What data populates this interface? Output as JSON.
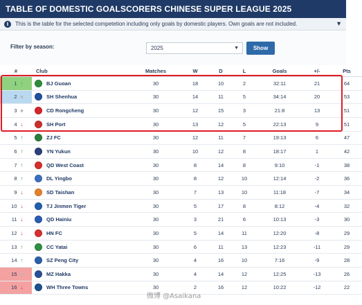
{
  "header": {
    "title": "TABLE OF DOMESTIC GOALSCORERS CHINESE SUPER LEAGUE 2025",
    "info_icon": "info-icon",
    "info_text": "This is the table for the selected competetion including only goals by domestic players. Own goals are not included.",
    "info_toggle": "▼"
  },
  "filter": {
    "label": "Filter by season:",
    "season_value": "2025",
    "show_label": "Show"
  },
  "columns": {
    "pos": "#",
    "club": "Club",
    "matches": "Matches",
    "w": "W",
    "d": "D",
    "l": "L",
    "goals": "Goals",
    "diff": "+/-",
    "pts": "Pts"
  },
  "colors": {
    "header_bg": "#1f3a66",
    "acl_zone": "#8fd17f",
    "acl2_zone": "#b8d9f0",
    "relegation_zone": "#f3a1a1",
    "highlight_border": "#e01b24"
  },
  "rows": [
    {
      "pos": "1",
      "trend": "up",
      "club": "BJ Guoan",
      "badge": "#2e8b3a",
      "matches": "30",
      "w": "18",
      "d": "10",
      "l": "2",
      "goals": "32:11",
      "diff": "21",
      "pts": "64",
      "zone": "acl"
    },
    {
      "pos": "2",
      "trend": "flat",
      "club": "SH Shenhua",
      "badge": "#1f4fa0",
      "matches": "30",
      "w": "14",
      "d": "11",
      "l": "5",
      "goals": "34:14",
      "diff": "20",
      "pts": "53",
      "zone": "acl2"
    },
    {
      "pos": "3",
      "trend": "flat",
      "club": "CD Rongcheng",
      "badge": "#d4262b",
      "matches": "30",
      "w": "12",
      "d": "15",
      "l": "3",
      "goals": "21:8",
      "diff": "13",
      "pts": "51",
      "zone": ""
    },
    {
      "pos": "4",
      "trend": "down",
      "club": "SH Port",
      "badge": "#c9302c",
      "matches": "30",
      "w": "13",
      "d": "12",
      "l": "5",
      "goals": "22:13",
      "diff": "9",
      "pts": "51",
      "zone": ""
    },
    {
      "pos": "5",
      "trend": "up",
      "club": "ZJ FC",
      "badge": "#2d7d3c",
      "matches": "30",
      "w": "12",
      "d": "11",
      "l": "7",
      "goals": "19:13",
      "diff": "6",
      "pts": "47",
      "zone": ""
    },
    {
      "pos": "6",
      "trend": "up",
      "club": "YN Yukun",
      "badge": "#2b3f7a",
      "matches": "30",
      "w": "10",
      "d": "12",
      "l": "8",
      "goals": "18:17",
      "diff": "1",
      "pts": "42",
      "zone": ""
    },
    {
      "pos": "7",
      "trend": "up",
      "club": "QD West Coast",
      "badge": "#d62e2e",
      "matches": "30",
      "w": "8",
      "d": "14",
      "l": "8",
      "goals": "9:10",
      "diff": "-1",
      "pts": "38",
      "zone": ""
    },
    {
      "pos": "8",
      "trend": "up",
      "club": "DL Yingbo",
      "badge": "#3b6fc1",
      "matches": "30",
      "w": "8",
      "d": "12",
      "l": "10",
      "goals": "12:14",
      "diff": "-2",
      "pts": "36",
      "zone": ""
    },
    {
      "pos": "9",
      "trend": "down",
      "club": "SD Taishan",
      "badge": "#e6812a",
      "matches": "30",
      "w": "7",
      "d": "13",
      "l": "10",
      "goals": "11:18",
      "diff": "-7",
      "pts": "34",
      "zone": ""
    },
    {
      "pos": "10",
      "trend": "down",
      "club": "TJ Jinmen Tiger",
      "badge": "#1f5fae",
      "matches": "30",
      "w": "5",
      "d": "17",
      "l": "8",
      "goals": "8:12",
      "diff": "-4",
      "pts": "32",
      "zone": ""
    },
    {
      "pos": "11",
      "trend": "down",
      "club": "QD Hainiu",
      "badge": "#2a5bb5",
      "matches": "30",
      "w": "3",
      "d": "21",
      "l": "6",
      "goals": "10:13",
      "diff": "-3",
      "pts": "30",
      "zone": ""
    },
    {
      "pos": "12",
      "trend": "down",
      "club": "HN FC",
      "badge": "#d8302d",
      "matches": "30",
      "w": "5",
      "d": "14",
      "l": "11",
      "goals": "12:20",
      "diff": "-8",
      "pts": "29",
      "zone": ""
    },
    {
      "pos": "13",
      "trend": "up",
      "club": "CC Yatai",
      "badge": "#2f8f43",
      "matches": "30",
      "w": "6",
      "d": "11",
      "l": "13",
      "goals": "12:23",
      "diff": "-11",
      "pts": "29",
      "zone": ""
    },
    {
      "pos": "14",
      "trend": "up",
      "club": "SZ Peng City",
      "badge": "#2c5fa8",
      "matches": "30",
      "w": "4",
      "d": "16",
      "l": "10",
      "goals": "7:16",
      "diff": "-9",
      "pts": "28",
      "zone": ""
    },
    {
      "pos": "15",
      "trend": "flat",
      "club": "MZ Hakka",
      "badge": "#2a4f9a",
      "matches": "30",
      "w": "4",
      "d": "14",
      "l": "12",
      "goals": "12:25",
      "diff": "-13",
      "pts": "26",
      "zone": "rel"
    },
    {
      "pos": "16",
      "trend": "down",
      "club": "WH Three Towns",
      "badge": "#1e4f8f",
      "matches": "30",
      "w": "2",
      "d": "16",
      "l": "12",
      "goals": "10:22",
      "diff": "-12",
      "pts": "22",
      "zone": "rel"
    }
  ],
  "watermark": "微博 @Asaikana"
}
